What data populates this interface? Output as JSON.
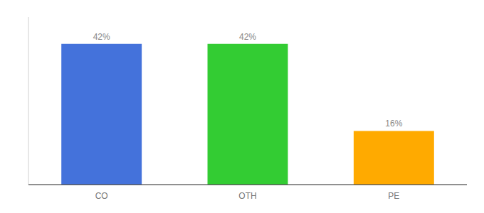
{
  "chart_data": {
    "type": "bar",
    "categories": [
      "CO",
      "OTH",
      "PE"
    ],
    "values": [
      42,
      42,
      16
    ],
    "value_labels": [
      "42%",
      "42%",
      "16%"
    ],
    "colors": [
      "#4472db",
      "#33cc33",
      "#ffaa00"
    ],
    "ylim": [
      0,
      50
    ],
    "data_labels": true,
    "tick_labels": "x"
  }
}
